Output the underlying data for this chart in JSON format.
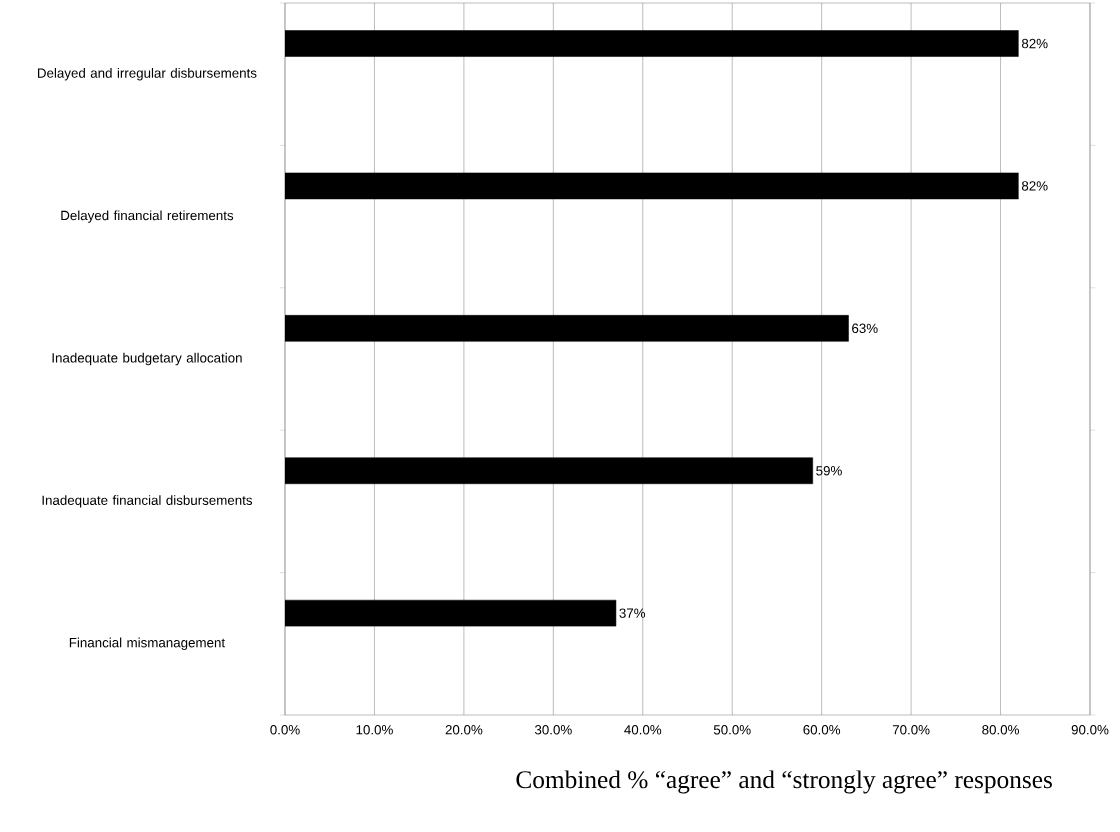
{
  "chart_data": {
    "type": "bar",
    "orientation": "horizontal",
    "color": "#000000",
    "categories": [
      "Delayed and irregular disbursements",
      "Delayed financial retirements",
      "Inadequate budgetary allocation",
      "Inadequate financial disbursements",
      "Financial mismanagement"
    ],
    "values": [
      82,
      82,
      63,
      59,
      37
    ],
    "value_labels": [
      "82%",
      "82%",
      "63%",
      "59%",
      "37%"
    ],
    "xlim": [
      0,
      90
    ],
    "xticks": [
      {
        "value": 0,
        "label": "0.0%"
      },
      {
        "value": 10,
        "label": "10.0%"
      },
      {
        "value": 20,
        "label": "20.0%"
      },
      {
        "value": 30,
        "label": "30.0%"
      },
      {
        "value": 40,
        "label": "40.0%"
      },
      {
        "value": 50,
        "label": "50.0%"
      },
      {
        "value": 60,
        "label": "60.0%"
      },
      {
        "value": 70,
        "label": "70.0%"
      },
      {
        "value": 80,
        "label": "80.0%"
      },
      {
        "value": 90,
        "label": "90.0%"
      }
    ],
    "xlabel": "Combined % “agree” and “strongly agree” responses",
    "grid": "x"
  }
}
